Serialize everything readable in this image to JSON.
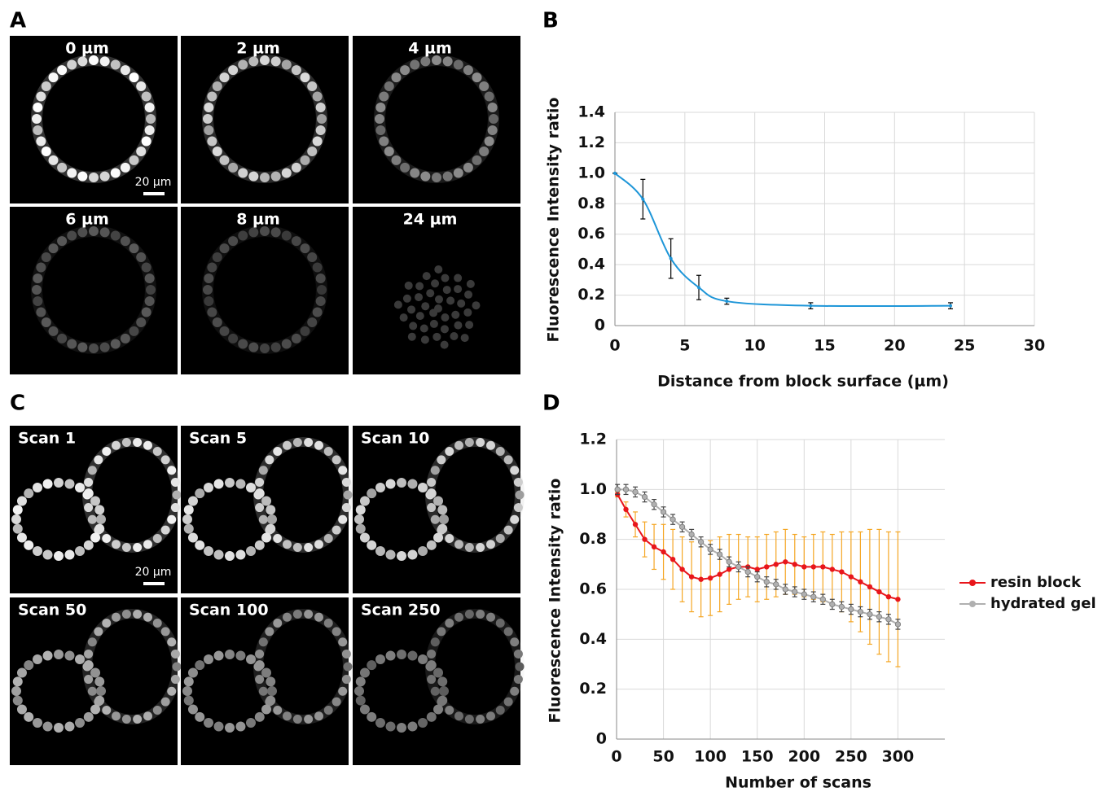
{
  "panels": {
    "A": {
      "letter": "A",
      "images": [
        "0 µm",
        "2 µm",
        "4 µm",
        "6 µm",
        "8 µm",
        "24 µm"
      ],
      "scale_bar": "20 µm"
    },
    "B": {
      "letter": "B"
    },
    "C": {
      "letter": "C",
      "images": [
        "Scan 1",
        "Scan 5",
        "Scan 10",
        "Scan 50",
        "Scan 100",
        "Scan 250"
      ],
      "scale_bar": "20 µm"
    },
    "D": {
      "letter": "D"
    }
  },
  "chart_data": [
    {
      "type": "line",
      "x_label": "Distance from block surface (µm)",
      "y_label": "Fluorescence Intensity ratio",
      "x": [
        0,
        2,
        4,
        6,
        8,
        14,
        24
      ],
      "series": [
        {
          "color": "#1e96d8",
          "error_color": "#000000",
          "values": [
            1,
            0.83,
            0.44,
            0.25,
            0.16,
            0.13,
            0.13
          ],
          "errors": [
            0,
            0.13,
            0.13,
            0.08,
            0.02,
            0.02,
            0.02
          ]
        }
      ],
      "xlim": [
        0,
        30
      ],
      "xticks": [
        0,
        5,
        10,
        15,
        20,
        25,
        30
      ],
      "ylim": [
        0,
        1.4
      ],
      "yticks": [
        0,
        0.2,
        0.4,
        0.6,
        0.8,
        {
          "value": 1,
          "label": "1.0"
        },
        1.2,
        1.4
      ],
      "grid": true,
      "smooth": true
    },
    {
      "type": "line",
      "x_label": "Number of scans",
      "y_label": "Fluorescence Intensity ratio",
      "x": [
        1,
        10,
        20,
        30,
        40,
        50,
        60,
        70,
        80,
        90,
        100,
        110,
        120,
        130,
        140,
        150,
        160,
        170,
        180,
        190,
        200,
        210,
        220,
        230,
        240,
        250,
        260,
        270,
        280,
        290,
        300
      ],
      "series": [
        {
          "name": "resin block",
          "color": "#e8161b",
          "error_color": "#f5a623",
          "values": [
            0.98,
            0.92,
            0.86,
            0.8,
            0.77,
            0.75,
            0.72,
            0.68,
            0.65,
            0.64,
            0.645,
            0.66,
            0.68,
            0.69,
            0.69,
            0.68,
            0.69,
            0.7,
            0.71,
            0.7,
            0.69,
            0.69,
            0.69,
            0.68,
            0.67,
            0.65,
            0.63,
            0.61,
            0.59,
            0.57,
            0.56
          ],
          "errors": [
            0.01,
            0.03,
            0.05,
            0.07,
            0.09,
            0.11,
            0.12,
            0.13,
            0.14,
            0.15,
            0.15,
            0.15,
            0.14,
            0.13,
            0.12,
            0.13,
            0.13,
            0.13,
            0.13,
            0.12,
            0.12,
            0.13,
            0.14,
            0.14,
            0.16,
            0.18,
            0.2,
            0.23,
            0.25,
            0.26,
            0.27
          ]
        },
        {
          "name": "hydrated gel",
          "color": "#b0b0b0",
          "error_color": "#444444",
          "values": [
            1,
            1,
            0.99,
            0.97,
            0.94,
            0.91,
            0.88,
            0.85,
            0.82,
            0.79,
            0.76,
            0.74,
            0.71,
            0.69,
            0.67,
            0.65,
            0.63,
            0.62,
            0.6,
            0.59,
            0.58,
            0.57,
            0.56,
            0.54,
            0.53,
            0.52,
            0.51,
            0.5,
            0.49,
            0.48,
            0.46
          ],
          "errors": [
            0.02,
            0.02,
            0.02,
            0.02,
            0.02,
            0.02,
            0.02,
            0.02,
            0.02,
            0.02,
            0.02,
            0.02,
            0.02,
            0.02,
            0.02,
            0.02,
            0.02,
            0.02,
            0.02,
            0.02,
            0.02,
            0.02,
            0.02,
            0.02,
            0.02,
            0.02,
            0.02,
            0.02,
            0.02,
            0.02,
            0.02
          ]
        }
      ],
      "xlim": [
        0,
        350
      ],
      "xticks": [
        0,
        50,
        100,
        150,
        200,
        250,
        300
      ],
      "ylim": [
        0,
        1.2
      ],
      "yticks": [
        0,
        0.2,
        0.4,
        0.6,
        0.8,
        {
          "value": 1,
          "label": "1.0"
        },
        1.2
      ],
      "grid": true,
      "smooth": false,
      "legend": "right"
    }
  ]
}
